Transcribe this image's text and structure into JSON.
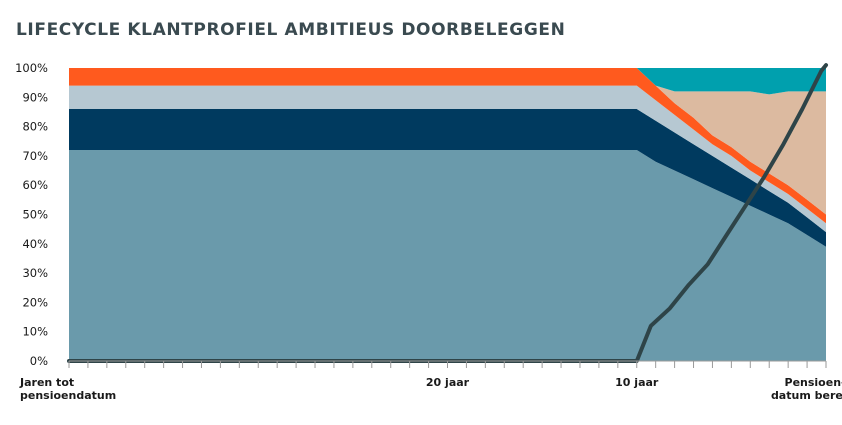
{
  "chart_data": {
    "type": "area",
    "title": "LIFECYCLE KLANTPROFIEL AMBITIEUS DOORBELEGGEN",
    "y_ticks": [
      "0%",
      "10%",
      "20%",
      "30%",
      "40%",
      "50%",
      "60%",
      "70%",
      "80%",
      "90%",
      "100%"
    ],
    "ylim": [
      0,
      100
    ],
    "x_labels": [
      {
        "x": 0,
        "lines": [
          "Jaren tot",
          "pensioendatum"
        ]
      },
      {
        "x": 20,
        "lines": [
          "20 jaar"
        ]
      },
      {
        "x": 30,
        "lines": [
          "10 jaar"
        ]
      },
      {
        "x": 39,
        "lines": [
          "Pensioen-",
          "datum bereikt"
        ]
      }
    ],
    "x": [
      0,
      10,
      20,
      30,
      31,
      32,
      33,
      34,
      35,
      36,
      37,
      38,
      39,
      40
    ],
    "stacked_series": [
      {
        "color": "#6a9aab",
        "values": [
          72,
          72,
          72,
          72,
          68,
          65,
          62,
          59,
          56,
          53,
          50,
          47,
          43,
          39
        ]
      },
      {
        "color": "#003a5f",
        "values": [
          14,
          14,
          14,
          14,
          14,
          13,
          12,
          11,
          10,
          9,
          8,
          7,
          6,
          5
        ]
      },
      {
        "color": "#b6c8d2",
        "values": [
          8,
          8,
          8,
          8,
          7,
          6,
          5,
          4,
          4,
          3,
          3,
          3,
          3,
          3
        ]
      },
      {
        "color": "#ff5a1e",
        "values": [
          6,
          6,
          6,
          6,
          5,
          4,
          4,
          3,
          3,
          3,
          3,
          3,
          3,
          3
        ]
      },
      {
        "color": "#dcbaa0",
        "values": [
          0,
          0,
          0,
          0,
          0,
          4,
          9,
          15,
          19,
          24,
          27,
          32,
          37,
          42
        ]
      },
      {
        "color": "#00a0ae",
        "values": [
          0,
          0,
          0,
          0,
          6,
          8,
          8,
          8,
          8,
          8,
          9,
          8,
          8,
          8
        ]
      }
    ],
    "line": {
      "color": "#2e4448",
      "x": [
        0,
        30,
        30.75,
        31.75,
        32.75,
        33.75,
        34.75,
        35.75,
        36.75,
        37.75,
        38.75,
        39.75,
        40
      ],
      "values": [
        0,
        0,
        12,
        18,
        26,
        33,
        43,
        53,
        63,
        74,
        86,
        99,
        101
      ]
    },
    "grid": false,
    "legend": "none"
  }
}
